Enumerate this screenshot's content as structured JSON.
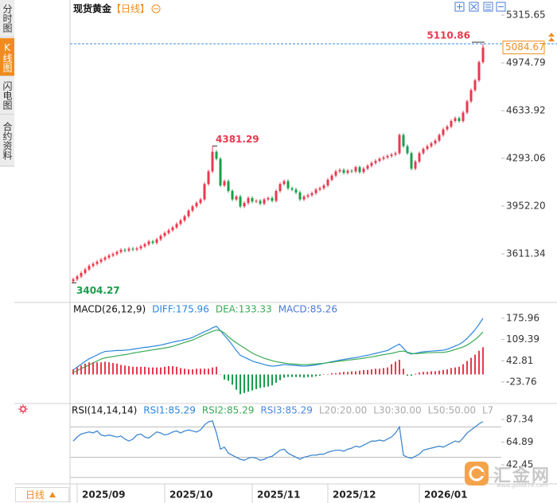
{
  "sidebar_tabs": [
    "分时图",
    "K线图",
    "闪电图",
    "合约资料"
  ],
  "title": "现货黄金",
  "period": "【日线】",
  "period_selector": "日线",
  "watermark": {
    "name": "汇金网",
    "url": "www.gold678.com"
  },
  "chart_data": [
    {
      "type": "candlestick",
      "categories": [
        null,
        "2025/09",
        null,
        null,
        null,
        null,
        null,
        null,
        null,
        null,
        null,
        null,
        null,
        null,
        null,
        null,
        null,
        null,
        null,
        null,
        null,
        null,
        null,
        "2025/10",
        null,
        null,
        null,
        null,
        null,
        null,
        null,
        null,
        null,
        null,
        null,
        null,
        null,
        null,
        null,
        null,
        null,
        null,
        null,
        null,
        null,
        "2025/11",
        null,
        null,
        null,
        null,
        null,
        null,
        null,
        null,
        null,
        null,
        null,
        null,
        null,
        null,
        null,
        null,
        null,
        null,
        "2025/12",
        null,
        null,
        null,
        null,
        null,
        null,
        null,
        null,
        null,
        null,
        null,
        null,
        null,
        null,
        null,
        null,
        null,
        null,
        null,
        null,
        null,
        null,
        "2026/01",
        null,
        null,
        null,
        null,
        null,
        null,
        null,
        null,
        null,
        null,
        null,
        null,
        null,
        null,
        null,
        null
      ],
      "open": [
        3415,
        3430,
        3450,
        3475,
        3500,
        3525,
        3540,
        3555,
        3570,
        3585,
        3600,
        3610,
        3625,
        3640,
        3635,
        3648,
        3642,
        3650,
        3665,
        3680,
        3700,
        3690,
        3715,
        3740,
        3760,
        3780,
        3800,
        3825,
        3850,
        3880,
        3920,
        3950,
        3975,
        4000,
        4110,
        4200,
        4340,
        4290,
        4100,
        4130,
        4060,
        4000,
        4020,
        3950,
        3975,
        4010,
        3985,
        3990,
        3970,
        4000,
        4010,
        3990,
        4060,
        4110,
        4130,
        4080,
        4070,
        4050,
        4000,
        4020,
        4030,
        4045,
        4070,
        4080,
        4100,
        4140,
        4170,
        4200,
        4210,
        4190,
        4205,
        4200,
        4230,
        4195,
        4220,
        4240,
        4260,
        4275,
        4290,
        4300,
        4310,
        4320,
        4330,
        4460,
        4380,
        4330,
        4220,
        4270,
        4330,
        4360,
        4380,
        4400,
        4420,
        4460,
        4500,
        4520,
        4560,
        4580,
        4560,
        4620,
        4700,
        4780,
        4850,
        4980
      ],
      "high": [
        3442,
        3462,
        3487,
        3512,
        3537,
        3552,
        3567,
        3582,
        3597,
        3612,
        3622,
        3637,
        3652,
        3652,
        3660,
        3660,
        3662,
        3677,
        3692,
        3712,
        3712,
        3727,
        3752,
        3772,
        3792,
        3812,
        3837,
        3862,
        3892,
        3932,
        3962,
        3987,
        4012,
        4122,
        4212,
        4381.29,
        4352,
        4302,
        4142,
        4142,
        4072,
        4032,
        4032,
        3987,
        4022,
        4022,
        4002,
        4002,
        4012,
        4022,
        4022,
        4072,
        4122,
        4142,
        4142,
        4092,
        4082,
        4062,
        4032,
        4042,
        4057,
        4082,
        4092,
        4112,
        4152,
        4182,
        4212,
        4222,
        4222,
        4217,
        4217,
        4242,
        4242,
        4232,
        4252,
        4272,
        4287,
        4302,
        4312,
        4322,
        4332,
        4342,
        4472,
        4472,
        4392,
        4342,
        4282,
        4342,
        4372,
        4392,
        4412,
        4432,
        4472,
        4512,
        4532,
        4572,
        4592,
        4592,
        4632,
        4712,
        4792,
        4862,
        4992,
        5110.86
      ],
      "low": [
        3404.27,
        3418,
        3438,
        3463,
        3488,
        3513,
        3528,
        3543,
        3558,
        3573,
        3588,
        3598,
        3613,
        3623,
        3623,
        3630,
        3630,
        3638,
        3653,
        3668,
        3678,
        3678,
        3703,
        3728,
        3748,
        3768,
        3788,
        3813,
        3838,
        3868,
        3908,
        3938,
        3963,
        3988,
        4098,
        4188,
        4278,
        4088,
        4088,
        4048,
        3988,
        3988,
        3938,
        3938,
        3963,
        3973,
        3973,
        3958,
        3958,
        3988,
        3978,
        3978,
        4048,
        4098,
        4068,
        4058,
        4038,
        3988,
        3988,
        4008,
        4018,
        4033,
        4058,
        4068,
        4088,
        4128,
        4158,
        4188,
        4178,
        4178,
        4188,
        4188,
        4183,
        4183,
        4208,
        4228,
        4248,
        4263,
        4278,
        4288,
        4298,
        4308,
        4318,
        4368,
        4318,
        4208,
        4208,
        4258,
        4318,
        4348,
        4368,
        4388,
        4408,
        4448,
        4488,
        4508,
        4548,
        4548,
        4548,
        4608,
        4688,
        4768,
        4838,
        4968
      ],
      "close": [
        3430,
        3450,
        3475,
        3500,
        3525,
        3540,
        3555,
        3570,
        3585,
        3600,
        3610,
        3625,
        3640,
        3635,
        3648,
        3642,
        3650,
        3665,
        3680,
        3700,
        3690,
        3715,
        3740,
        3760,
        3780,
        3800,
        3825,
        3850,
        3880,
        3920,
        3950,
        3975,
        4000,
        4110,
        4200,
        4340,
        4290,
        4100,
        4130,
        4060,
        4000,
        4020,
        3950,
        3975,
        4010,
        3985,
        3990,
        3970,
        4000,
        4010,
        3990,
        4060,
        4110,
        4130,
        4080,
        4070,
        4050,
        4000,
        4020,
        4030,
        4045,
        4070,
        4080,
        4100,
        4140,
        4170,
        4200,
        4210,
        4190,
        4205,
        4200,
        4230,
        4195,
        4220,
        4240,
        4260,
        4275,
        4290,
        4300,
        4310,
        4320,
        4330,
        4460,
        4380,
        4330,
        4220,
        4270,
        4330,
        4360,
        4380,
        4400,
        4420,
        4460,
        4500,
        4520,
        4560,
        4580,
        4560,
        4620,
        4700,
        4780,
        4850,
        4980,
        5084.67
      ],
      "up_color": "#e8394f",
      "down_color": "#1a9e4a",
      "low_label_color": "#1a9e4a",
      "high_line_color": "#3a8ee6",
      "last_price_color": "#f08c1e",
      "ylim": [
        3293,
        5378
      ],
      "yticks": [
        5315.65,
        4974.79,
        4633.92,
        4293.06,
        {
          "value": 3952.2,
          "label": "3952.20"
        },
        3611.34
      ],
      "grid": false
    },
    {
      "type": "macd",
      "title": "MACD(26,12,9)",
      "up_color": "#e8394f",
      "down_color": "#1a9e4a",
      "series": [
        {
          "name": "DIFF:175.96",
          "type": "line",
          "color": "#2b86e0",
          "values": [
            14,
            23,
            32,
            41,
            49,
            55,
            61,
            67,
            72,
            73,
            74,
            75,
            75,
            76,
            77,
            79,
            81,
            83,
            85,
            86,
            88,
            90,
            92,
            95,
            98,
            101,
            104,
            106,
            109,
            112,
            116,
            122,
            128,
            134,
            139,
            146,
            151,
            137,
            122,
            108,
            92,
            75,
            60,
            54,
            48,
            42,
            38,
            35,
            31,
            28,
            26,
            27,
            29,
            31,
            30,
            29,
            28,
            27,
            26,
            27,
            28,
            30,
            32,
            35,
            37,
            40,
            42,
            45,
            47,
            49,
            51,
            53,
            55,
            58,
            60,
            63,
            66,
            69,
            72,
            75,
            82,
            89,
            95,
            82,
            68,
            64,
            66,
            69,
            71,
            72,
            73,
            74,
            75,
            76,
            79,
            84,
            89,
            94,
            102,
            113,
            126,
            140,
            157,
            175.96
          ]
        },
        {
          "name": "DEA:133.33",
          "type": "line",
          "color": "#3aaa55",
          "values": [
            6,
            12,
            18,
            24,
            30,
            36,
            42,
            48,
            52,
            54,
            56,
            58,
            60,
            62,
            64,
            67,
            69,
            71,
            73,
            75,
            77,
            79,
            81,
            83,
            85,
            88,
            92,
            96,
            100,
            104,
            108,
            113,
            119,
            125,
            130,
            135,
            139,
            137,
            130,
            118,
            108,
            99,
            91,
            83,
            75,
            67,
            61,
            56,
            51,
            47,
            43,
            40,
            38,
            36,
            34,
            33,
            32,
            31,
            31,
            31,
            32,
            33,
            34,
            35,
            37,
            38,
            40,
            42,
            43,
            45,
            46,
            48,
            49,
            51,
            53,
            55,
            57,
            60,
            62,
            64,
            66,
            69,
            72,
            73,
            70,
            66,
            65,
            66,
            67,
            68,
            68,
            69,
            69,
            69,
            71,
            74,
            78,
            82,
            86,
            92,
            100,
            109,
            120,
            133.33
          ]
        },
        {
          "name": "MACD:85.26",
          "type": "bar",
          "color": "#4a7ad8",
          "values": [
            16,
            22,
            28,
            34,
            38,
            38,
            38,
            38,
            40,
            38,
            36,
            34,
            30,
            28,
            26,
            24,
            24,
            24,
            24,
            22,
            22,
            22,
            22,
            24,
            26,
            26,
            24,
            20,
            18,
            16,
            16,
            18,
            18,
            18,
            18,
            22,
            24,
            0,
            -16,
            -20,
            -32,
            -48,
            -62,
            -58,
            -54,
            -50,
            -46,
            -42,
            -40,
            -38,
            -34,
            -26,
            -18,
            -10,
            -8,
            -8,
            -8,
            -8,
            -10,
            -8,
            -8,
            -6,
            -4,
            0,
            0,
            4,
            4,
            6,
            8,
            8,
            10,
            10,
            12,
            14,
            14,
            16,
            18,
            18,
            20,
            22,
            32,
            40,
            46,
            18,
            -4,
            -4,
            2,
            6,
            8,
            8,
            10,
            10,
            12,
            14,
            16,
            20,
            22,
            24,
            32,
            42,
            52,
            62,
            74,
            85.26
          ]
        }
      ],
      "ylim": [
        -86,
        213
      ],
      "yticks": [
        175.96,
        109.39,
        42.81,
        -23.76
      ]
    },
    {
      "type": "rsi",
      "title": "RSI(14,14,14)",
      "series": [
        {
          "name": "RSI1:85.29",
          "color": "#2b86e0",
          "values": [
            66,
            70,
            73,
            74,
            75,
            74,
            76,
            72,
            71,
            72,
            71,
            70,
            71,
            68,
            66,
            68,
            72,
            73,
            70,
            69,
            72,
            75,
            74,
            72,
            73,
            75,
            76,
            74,
            76,
            77,
            76,
            75,
            77,
            82,
            85,
            86,
            74,
            58,
            60,
            54,
            52,
            50,
            48,
            47,
            49,
            50,
            49,
            47,
            48,
            50,
            51,
            54,
            57,
            58,
            54,
            52,
            50,
            48,
            50,
            51,
            52,
            52,
            53,
            53,
            55,
            56,
            57,
            57,
            56,
            58,
            59,
            61,
            60,
            62,
            64,
            66,
            66,
            67,
            66,
            68,
            70,
            74,
            80,
            52,
            50,
            49,
            51,
            53,
            57,
            58,
            59,
            60,
            61,
            60,
            62,
            64,
            66,
            65,
            69,
            74,
            77,
            80,
            83,
            85.29
          ]
        },
        {
          "name": "RSI2:85.29",
          "color": "#3aaa55",
          "values": [
            66,
            70,
            73,
            74,
            75,
            74,
            76,
            72,
            71,
            72,
            71,
            70,
            71,
            68,
            66,
            68,
            72,
            73,
            70,
            69,
            72,
            75,
            74,
            72,
            73,
            75,
            76,
            74,
            76,
            77,
            76,
            75,
            77,
            82,
            85,
            86,
            74,
            58,
            60,
            54,
            52,
            50,
            48,
            47,
            49,
            50,
            49,
            47,
            48,
            50,
            51,
            54,
            57,
            58,
            54,
            52,
            50,
            48,
            50,
            51,
            52,
            52,
            53,
            53,
            55,
            56,
            57,
            57,
            56,
            58,
            59,
            61,
            60,
            62,
            64,
            66,
            66,
            67,
            66,
            68,
            70,
            74,
            80,
            52,
            50,
            49,
            51,
            53,
            57,
            58,
            59,
            60,
            61,
            60,
            62,
            64,
            66,
            65,
            69,
            74,
            77,
            80,
            83,
            85.29
          ]
        },
        {
          "name": "RSI3:85.29",
          "color": "#4a88e0",
          "values": [
            66,
            70,
            73,
            74,
            75,
            74,
            76,
            72,
            71,
            72,
            71,
            70,
            71,
            68,
            66,
            68,
            72,
            73,
            70,
            69,
            72,
            75,
            74,
            72,
            73,
            75,
            76,
            74,
            76,
            77,
            76,
            75,
            77,
            82,
            85,
            86,
            74,
            58,
            60,
            54,
            52,
            50,
            48,
            47,
            49,
            50,
            49,
            47,
            48,
            50,
            51,
            54,
            57,
            58,
            54,
            52,
            50,
            48,
            50,
            51,
            52,
            52,
            53,
            53,
            55,
            56,
            57,
            57,
            56,
            58,
            59,
            61,
            60,
            62,
            64,
            66,
            66,
            67,
            66,
            68,
            70,
            74,
            80,
            52,
            50,
            49,
            51,
            53,
            57,
            58,
            59,
            60,
            61,
            60,
            62,
            64,
            66,
            65,
            69,
            74,
            77,
            80,
            83,
            85.29
          ]
        }
      ],
      "reference_labels": [
        "L20:20.00",
        "L30:30.00",
        "L50:50.00",
        "L7"
      ],
      "reference_color": "#aaaaaa",
      "levels": [
        80,
        50,
        30
      ],
      "level_color": "#bbbbbb",
      "ylim": [
        26,
        99.2
      ],
      "yticks": [
        87.34,
        64.89,
        42.45
      ]
    }
  ]
}
